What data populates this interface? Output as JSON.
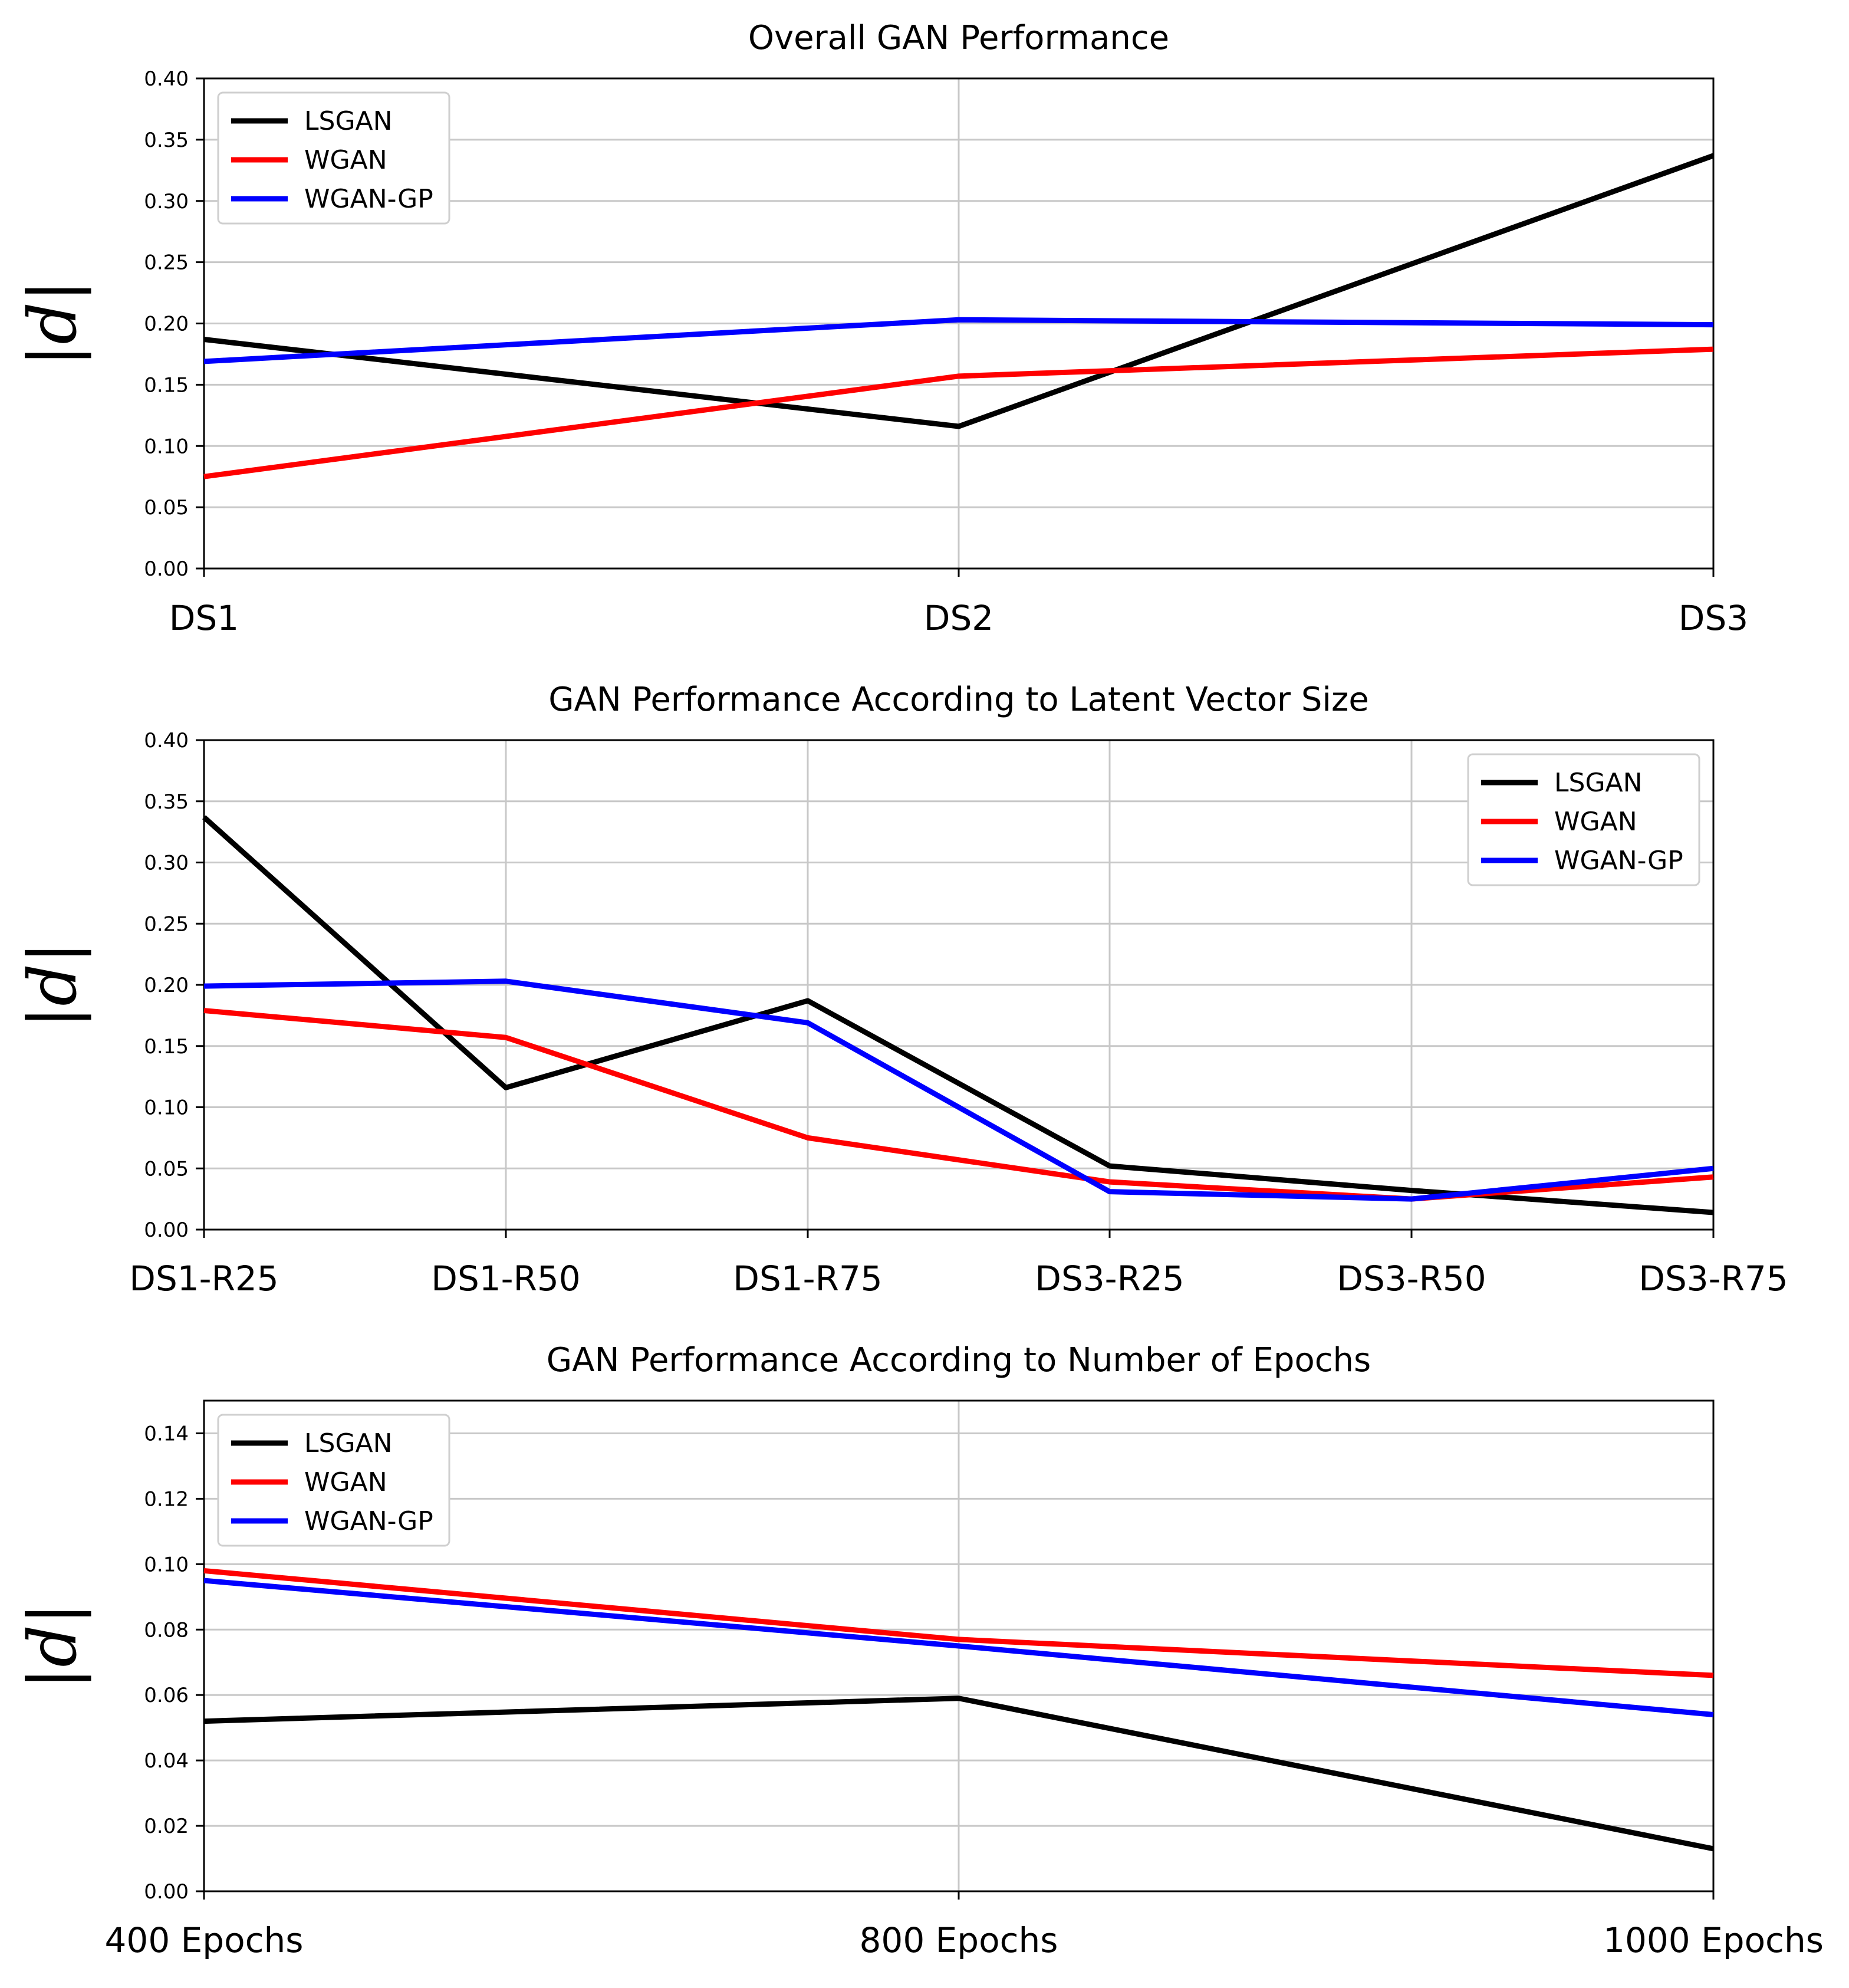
{
  "chart_data": [
    {
      "type": "line",
      "title": "Overall GAN Performance",
      "ylabel": "|d|",
      "xlabel": "",
      "categories": [
        "DS1",
        "DS2",
        "DS3"
      ],
      "ylim": [
        0,
        0.4
      ],
      "yticks": [
        "0.00",
        "0.05",
        "0.10",
        "0.15",
        "0.20",
        "0.25",
        "0.30",
        "0.35",
        "0.40"
      ],
      "yticks_values": [
        0,
        0.05,
        0.1,
        0.15,
        0.2,
        0.25,
        0.3,
        0.35,
        0.4
      ],
      "grid": true,
      "legend_position": "top-left",
      "series": [
        {
          "name": "LSGAN",
          "color": "#000000",
          "values": [
            0.187,
            0.116,
            0.337
          ]
        },
        {
          "name": "WGAN",
          "color": "#ff0000",
          "values": [
            0.075,
            0.157,
            0.179
          ]
        },
        {
          "name": "WGAN-GP",
          "color": "#0000ff",
          "values": [
            0.169,
            0.203,
            0.199
          ]
        }
      ]
    },
    {
      "type": "line",
      "title": "GAN Performance According to Latent Vector Size",
      "ylabel": "|d|",
      "xlabel": "",
      "categories": [
        "DS1-R25",
        "DS1-R50",
        "DS1-R75",
        "DS3-R25",
        "DS3-R50",
        "DS3-R75"
      ],
      "ylim": [
        0,
        0.4
      ],
      "yticks": [
        "0.00",
        "0.05",
        "0.10",
        "0.15",
        "0.20",
        "0.25",
        "0.30",
        "0.35",
        "0.40"
      ],
      "yticks_values": [
        0,
        0.05,
        0.1,
        0.15,
        0.2,
        0.25,
        0.3,
        0.35,
        0.4
      ],
      "grid": true,
      "legend_position": "top-right",
      "series": [
        {
          "name": "LSGAN",
          "color": "#000000",
          "values": [
            0.337,
            0.116,
            0.187,
            0.052,
            0.032,
            0.014
          ]
        },
        {
          "name": "WGAN",
          "color": "#ff0000",
          "values": [
            0.179,
            0.157,
            0.075,
            0.039,
            0.025,
            0.043
          ]
        },
        {
          "name": "WGAN-GP",
          "color": "#0000ff",
          "values": [
            0.199,
            0.203,
            0.169,
            0.031,
            0.025,
            0.05
          ]
        }
      ]
    },
    {
      "type": "line",
      "title": "GAN Performance According to Number of Epochs",
      "ylabel": "|d|",
      "xlabel": "",
      "categories": [
        "400 Epochs",
        "800 Epochs",
        "1000 Epochs"
      ],
      "ylim": [
        0,
        0.15
      ],
      "yticks": [
        "0.00",
        "0.02",
        "0.04",
        "0.06",
        "0.08",
        "0.10",
        "0.12",
        "0.14"
      ],
      "yticks_values": [
        0,
        0.02,
        0.04,
        0.06,
        0.08,
        0.1,
        0.12,
        0.14
      ],
      "grid": true,
      "legend_position": "top-left",
      "series": [
        {
          "name": "LSGAN",
          "color": "#000000",
          "values": [
            0.052,
            0.059,
            0.013
          ]
        },
        {
          "name": "WGAN",
          "color": "#ff0000",
          "values": [
            0.098,
            0.077,
            0.066
          ]
        },
        {
          "name": "WGAN-GP",
          "color": "#0000ff",
          "values": [
            0.095,
            0.075,
            0.054
          ]
        }
      ]
    }
  ]
}
